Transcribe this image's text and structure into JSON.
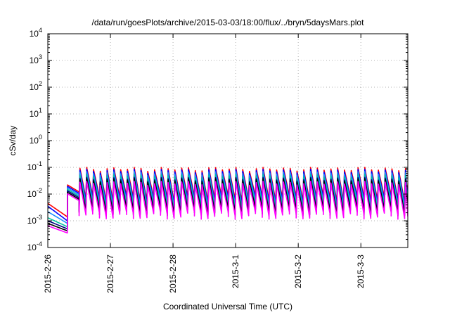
{
  "chart_data": {
    "type": "line",
    "title": "/data/run/goesPlots/archive/2015-03-03/18:00/flux/../bryn/5daysMars.plot",
    "xlabel": "Coordinated Universal Time (UTC)",
    "ylabel": "cSv/day",
    "y_scale": "log",
    "ylim": [
      0.0001,
      10000
    ],
    "xlim": [
      "2015-02-26 00:00",
      "2015-03-03 18:00"
    ],
    "grid": true,
    "legend": "none",
    "y_ticks": [
      {
        "value": 0.0001,
        "base": "10",
        "exp": "-4"
      },
      {
        "value": 0.001,
        "base": "10",
        "exp": "-3"
      },
      {
        "value": 0.01,
        "base": "10",
        "exp": "-2"
      },
      {
        "value": 0.1,
        "base": "10",
        "exp": "-1"
      },
      {
        "value": 1,
        "base": "10",
        "exp": "0"
      },
      {
        "value": 10,
        "base": "10",
        "exp": "1"
      },
      {
        "value": 100,
        "base": "10",
        "exp": "2"
      },
      {
        "value": 1000,
        "base": "10",
        "exp": "3"
      },
      {
        "value": 10000,
        "base": "10",
        "exp": "4"
      }
    ],
    "x_ticks": [
      {
        "value": "2015-02-26 00:00",
        "label": "2015-2-26"
      },
      {
        "value": "2015-02-27 00:00",
        "label": "2015-2-27"
      },
      {
        "value": "2015-02-28 00:00",
        "label": "2015-2-28"
      },
      {
        "value": "2015-03-01 00:00",
        "label": "2015-3-1"
      },
      {
        "value": "2015-03-02 00:00",
        "label": "2015-3-2"
      },
      {
        "value": "2015-03-03 00:00",
        "label": "2015-3-3"
      }
    ],
    "features": {
      "initial_segment_end": "2015-02-26 07:30",
      "initial_start_values": [
        0.0045,
        0.0035,
        0.0022,
        0.0013,
        0.001,
        0.0008,
        0.00065
      ],
      "initial_end_values": [
        0.0014,
        0.001,
        0.0008,
        0.0006,
        0.0005,
        0.00042,
        0.00035
      ],
      "pulse_period_hours": 2.6,
      "pulse_start": "2015-02-26 12:00",
      "pulse_peak_range": [
        0.05,
        0.1
      ],
      "pulse_trough_range": [
        0.004,
        0.015
      ]
    },
    "series": [
      {
        "color": "#ff0000",
        "scale": 1.0
      },
      {
        "color": "#0000ff",
        "scale": 0.85
      },
      {
        "color": "#1e90ff",
        "scale": 0.7
      },
      {
        "color": "#00c0a0",
        "scale": 0.55
      },
      {
        "color": "#000080",
        "scale": 0.42
      },
      {
        "color": "#000000",
        "scale": 0.38
      },
      {
        "color": "#ff00ff",
        "scale": 0.3
      }
    ]
  }
}
